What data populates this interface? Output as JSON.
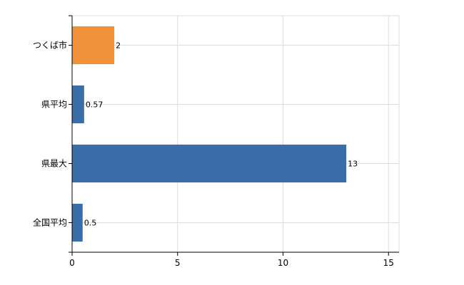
{
  "chart_data": {
    "type": "bar",
    "orientation": "horizontal",
    "title": "",
    "xlabel": "",
    "ylabel": "",
    "xlim": [
      0,
      15.5
    ],
    "x_ticks": [
      0,
      5,
      10,
      15
    ],
    "grid": true,
    "categories": [
      "つくば市",
      "県平均",
      "県最大",
      "全国平均"
    ],
    "values": [
      2,
      0.57,
      13,
      0.5
    ],
    "data_labels": [
      "2",
      "0.57",
      "13",
      "0.5"
    ],
    "colors": [
      "#f0913a",
      "#3b6ea8",
      "#3b6ea8",
      "#3b6ea8"
    ]
  }
}
